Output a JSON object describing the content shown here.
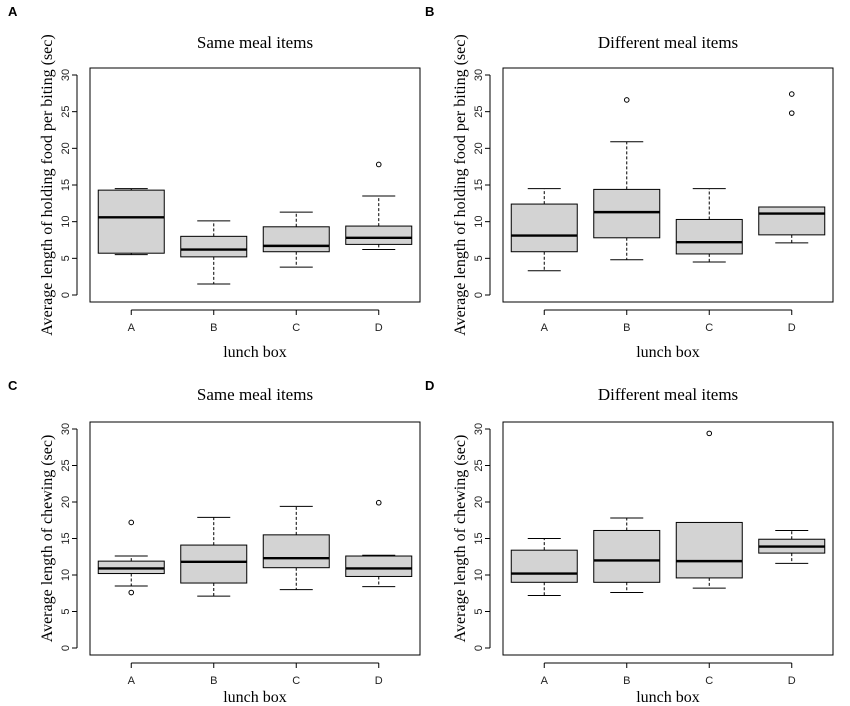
{
  "chart_data": [
    {
      "type": "boxplot",
      "panel_label": "A",
      "title": "Same meal items",
      "xlabel": "lunch box",
      "ylabel": "Average length of holding food per biting (sec)",
      "ylim": [
        0,
        30
      ],
      "yticks": [
        0,
        5,
        10,
        15,
        20,
        25,
        30
      ],
      "categories": [
        "A",
        "B",
        "C",
        "D"
      ],
      "boxes": [
        {
          "category": "A",
          "min": 5.5,
          "q1": 5.7,
          "median": 10.6,
          "q3": 14.3,
          "max": 14.5,
          "outliers": []
        },
        {
          "category": "B",
          "min": 1.5,
          "q1": 5.2,
          "median": 6.2,
          "q3": 8.0,
          "max": 10.1,
          "outliers": []
        },
        {
          "category": "C",
          "min": 3.8,
          "q1": 5.9,
          "median": 6.7,
          "q3": 9.3,
          "max": 11.3,
          "outliers": []
        },
        {
          "category": "D",
          "min": 6.2,
          "q1": 6.9,
          "median": 7.8,
          "q3": 9.4,
          "max": 13.5,
          "outliers": [
            17.8
          ]
        }
      ]
    },
    {
      "type": "boxplot",
      "panel_label": "B",
      "title": "Different meal items",
      "xlabel": "lunch box",
      "ylabel": "Average length of holding food per biting (sec)",
      "ylim": [
        0,
        30
      ],
      "yticks": [
        0,
        5,
        10,
        15,
        20,
        25,
        30
      ],
      "categories": [
        "A",
        "B",
        "C",
        "D"
      ],
      "boxes": [
        {
          "category": "A",
          "min": 3.3,
          "q1": 5.9,
          "median": 8.1,
          "q3": 12.4,
          "max": 14.5,
          "outliers": []
        },
        {
          "category": "B",
          "min": 4.8,
          "q1": 7.8,
          "median": 11.3,
          "q3": 14.4,
          "max": 20.9,
          "outliers": [
            26.6
          ]
        },
        {
          "category": "C",
          "min": 4.5,
          "q1": 5.6,
          "median": 7.2,
          "q3": 10.3,
          "max": 14.5,
          "outliers": []
        },
        {
          "category": "D",
          "min": 7.1,
          "q1": 8.2,
          "median": 11.1,
          "q3": 12.0,
          "max": 12.0,
          "outliers": [
            24.8,
            27.4
          ]
        }
      ]
    },
    {
      "type": "boxplot",
      "panel_label": "C",
      "title": "Same meal items",
      "xlabel": "lunch box",
      "ylabel": "Average length of chewing (sec)",
      "ylim": [
        0,
        30
      ],
      "yticks": [
        0,
        5,
        10,
        15,
        20,
        25,
        30
      ],
      "categories": [
        "A",
        "B",
        "C",
        "D"
      ],
      "boxes": [
        {
          "category": "A",
          "min": 8.5,
          "q1": 10.2,
          "median": 10.9,
          "q3": 11.9,
          "max": 12.6,
          "outliers": [
            17.2,
            7.6
          ]
        },
        {
          "category": "B",
          "min": 7.1,
          "q1": 8.9,
          "median": 11.8,
          "q3": 14.1,
          "max": 17.9,
          "outliers": []
        },
        {
          "category": "C",
          "min": 8.0,
          "q1": 11.0,
          "median": 12.3,
          "q3": 15.5,
          "max": 19.4,
          "outliers": []
        },
        {
          "category": "D",
          "min": 8.4,
          "q1": 9.8,
          "median": 10.9,
          "q3": 12.6,
          "max": 12.7,
          "outliers": [
            19.9
          ]
        }
      ]
    },
    {
      "type": "boxplot",
      "panel_label": "D",
      "title": "Different meal items",
      "xlabel": "lunch box",
      "ylabel": "Average length of chewing (sec)",
      "ylim": [
        0,
        30
      ],
      "yticks": [
        0,
        5,
        10,
        15,
        20,
        25,
        30
      ],
      "categories": [
        "A",
        "B",
        "C",
        "D"
      ],
      "boxes": [
        {
          "category": "A",
          "min": 7.2,
          "q1": 9.0,
          "median": 10.2,
          "q3": 13.4,
          "max": 15.0,
          "outliers": []
        },
        {
          "category": "B",
          "min": 7.6,
          "q1": 9.0,
          "median": 12.0,
          "q3": 16.1,
          "max": 17.8,
          "outliers": []
        },
        {
          "category": "C",
          "min": 8.2,
          "q1": 9.6,
          "median": 11.9,
          "q3": 17.2,
          "max": 17.2,
          "outliers": [
            29.4
          ]
        },
        {
          "category": "D",
          "min": 11.6,
          "q1": 13.0,
          "median": 13.9,
          "q3": 14.9,
          "max": 16.1,
          "outliers": []
        }
      ]
    }
  ]
}
